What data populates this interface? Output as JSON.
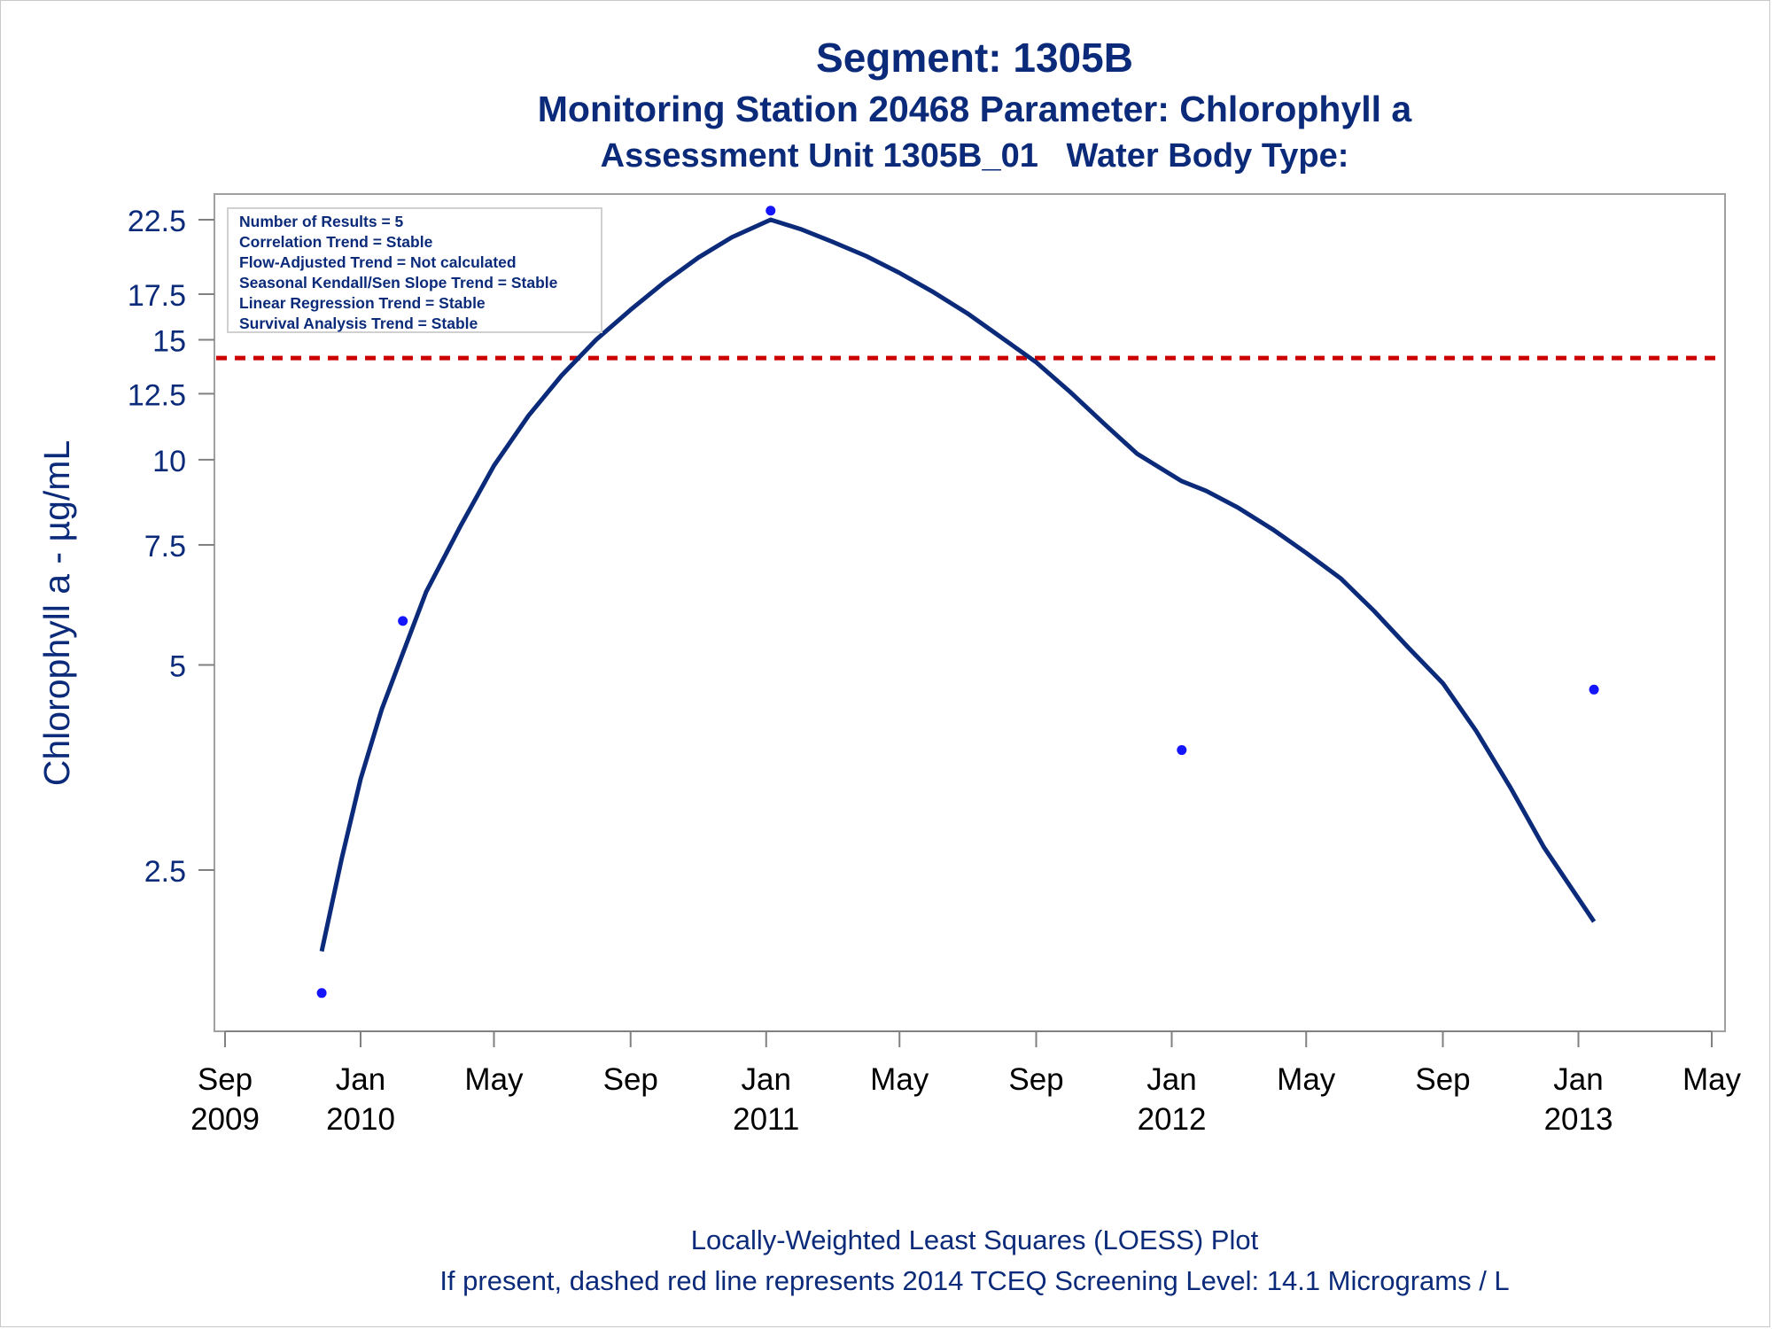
{
  "title": {
    "line1": "Segment: 1305B",
    "line2": "Monitoring Station 20468 Parameter: Chlorophyll a",
    "line3": "Assessment Unit 1305B_01   Water Body Type:"
  },
  "footer": {
    "line1": "Locally-Weighted Least Squares (LOESS) Plot",
    "line2": "If present, dashed red line represents 2014 TCEQ Screening Level: 14.1 Micrograms / L"
  },
  "legend": {
    "lines": [
      "Number of Results = 5",
      "Correlation Trend = Stable",
      "Flow-Adjusted Trend = Not calculated",
      "Seasonal Kendall/Sen Slope Trend = Stable",
      "Linear Regression Trend = Stable",
      "Survival Analysis Trend = Stable"
    ]
  },
  "colors": {
    "text": "#0b2b7a",
    "curve": "#0b2b7a",
    "points": "#1414ff",
    "screening_line": "#cc0000",
    "axis": "#808080"
  },
  "chart_data": {
    "type": "scatter",
    "ylabel": "Chlorophyll a -  µg/mL",
    "xlabel": "",
    "y_scale": "log",
    "ylim": [
      1.6,
      23.5
    ],
    "xlim": [
      "2009-09-01",
      "2013-05-01"
    ],
    "y_ticks": [
      {
        "value": 2.5,
        "label": "2.5"
      },
      {
        "value": 5,
        "label": "5"
      },
      {
        "value": 7.5,
        "label": "7.5"
      },
      {
        "value": 10,
        "label": "10"
      },
      {
        "value": 12.5,
        "label": "12.5"
      },
      {
        "value": 15,
        "label": "15"
      },
      {
        "value": 17.5,
        "label": "17.5"
      },
      {
        "value": 22.5,
        "label": "22.5"
      }
    ],
    "x_ticks": [
      {
        "date": "2009-09-01",
        "label1": "Sep",
        "label2": "2009"
      },
      {
        "date": "2010-01-01",
        "label1": "Jan",
        "label2": "2010"
      },
      {
        "date": "2010-05-01",
        "label1": "May",
        "label2": ""
      },
      {
        "date": "2010-09-01",
        "label1": "Sep",
        "label2": ""
      },
      {
        "date": "2011-01-01",
        "label1": "Jan",
        "label2": "2011"
      },
      {
        "date": "2011-05-01",
        "label1": "May",
        "label2": ""
      },
      {
        "date": "2011-09-01",
        "label1": "Sep",
        "label2": ""
      },
      {
        "date": "2012-01-01",
        "label1": "Jan",
        "label2": "2012"
      },
      {
        "date": "2012-05-01",
        "label1": "May",
        "label2": ""
      },
      {
        "date": "2012-09-01",
        "label1": "Sep",
        "label2": ""
      },
      {
        "date": "2013-01-01",
        "label1": "Jan",
        "label2": "2013"
      },
      {
        "date": "2013-05-01",
        "label1": "May",
        "label2": ""
      }
    ],
    "points": [
      {
        "date": "2009-11-27",
        "value": 1.65
      },
      {
        "date": "2010-02-08",
        "value": 5.8
      },
      {
        "date": "2011-01-05",
        "value": 23.2
      },
      {
        "date": "2012-01-10",
        "value": 3.75
      },
      {
        "date": "2013-01-15",
        "value": 4.6
      }
    ],
    "loess_curve": [
      {
        "date": "2009-11-27",
        "value": 1.9
      },
      {
        "date": "2009-12-15",
        "value": 2.6
      },
      {
        "date": "2010-01-01",
        "value": 3.4
      },
      {
        "date": "2010-01-20",
        "value": 4.3
      },
      {
        "date": "2010-02-08",
        "value": 5.2
      },
      {
        "date": "2010-03-01",
        "value": 6.4
      },
      {
        "date": "2010-04-01",
        "value": 8.0
      },
      {
        "date": "2010-05-01",
        "value": 9.8
      },
      {
        "date": "2010-06-01",
        "value": 11.6
      },
      {
        "date": "2010-07-01",
        "value": 13.3
      },
      {
        "date": "2010-08-01",
        "value": 15.0
      },
      {
        "date": "2010-09-01",
        "value": 16.6
      },
      {
        "date": "2010-10-01",
        "value": 18.2
      },
      {
        "date": "2010-11-01",
        "value": 19.8
      },
      {
        "date": "2010-12-01",
        "value": 21.2
      },
      {
        "date": "2011-01-05",
        "value": 22.5
      },
      {
        "date": "2011-02-01",
        "value": 21.8
      },
      {
        "date": "2011-03-01",
        "value": 20.9
      },
      {
        "date": "2011-04-01",
        "value": 19.9
      },
      {
        "date": "2011-05-01",
        "value": 18.8
      },
      {
        "date": "2011-06-01",
        "value": 17.6
      },
      {
        "date": "2011-07-01",
        "value": 16.4
      },
      {
        "date": "2011-08-01",
        "value": 15.1
      },
      {
        "date": "2011-09-01",
        "value": 13.9
      },
      {
        "date": "2011-10-01",
        "value": 12.6
      },
      {
        "date": "2011-11-01",
        "value": 11.3
      },
      {
        "date": "2011-12-01",
        "value": 10.2
      },
      {
        "date": "2012-01-10",
        "value": 9.3
      },
      {
        "date": "2012-02-01",
        "value": 9.0
      },
      {
        "date": "2012-03-01",
        "value": 8.5
      },
      {
        "date": "2012-04-01",
        "value": 7.9
      },
      {
        "date": "2012-05-01",
        "value": 7.3
      },
      {
        "date": "2012-06-01",
        "value": 6.7
      },
      {
        "date": "2012-07-01",
        "value": 6.0
      },
      {
        "date": "2012-08-01",
        "value": 5.3
      },
      {
        "date": "2012-09-01",
        "value": 4.7
      },
      {
        "date": "2012-10-01",
        "value": 4.0
      },
      {
        "date": "2012-11-01",
        "value": 3.3
      },
      {
        "date": "2012-12-01",
        "value": 2.7
      },
      {
        "date": "2013-01-15",
        "value": 2.1
      }
    ],
    "screening_level": 14.1
  }
}
